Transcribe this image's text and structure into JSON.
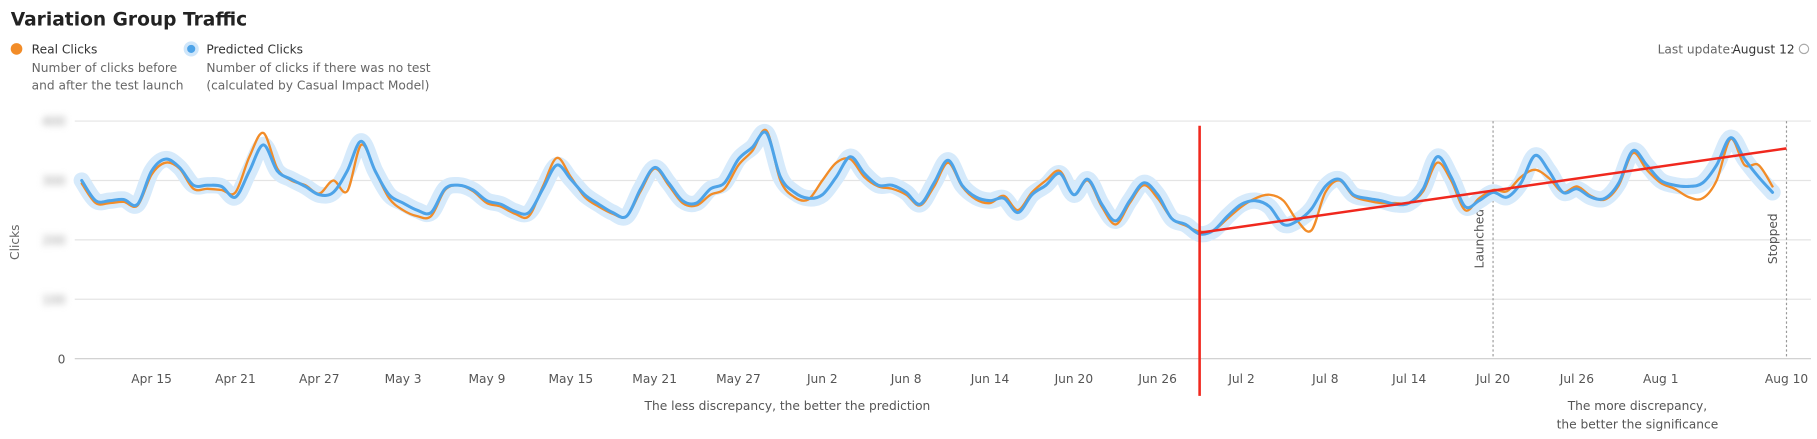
{
  "header": {
    "title": "Variation Group Traffic",
    "last_update_label": "Last update:",
    "last_update": "August 12"
  },
  "chart_data": {
    "type": "line",
    "y_label": "Clicks",
    "categories": [
      "Apr 10",
      "Apr 11",
      "Apr 12",
      "Apr 13",
      "Apr 14",
      "Apr 15",
      "Apr 16",
      "Apr 17",
      "Apr 18",
      "Apr 19",
      "Apr 20",
      "Apr 21",
      "Apr 22",
      "Apr 23",
      "Apr 24",
      "Apr 25",
      "Apr 26",
      "Apr 27",
      "Apr 28",
      "Apr 29",
      "Apr 30",
      "May 1",
      "May 2",
      "May 3",
      "May 4",
      "May 5",
      "May 6",
      "May 7",
      "May 8",
      "May 9",
      "May 10",
      "May 11",
      "May 12",
      "May 13",
      "May 14",
      "May 15",
      "May 16",
      "May 17",
      "May 18",
      "May 19",
      "May 20",
      "May 21",
      "May 22",
      "May 23",
      "May 24",
      "May 25",
      "May 26",
      "May 27",
      "May 28",
      "May 29",
      "May 30",
      "May 31",
      "Jun 1",
      "Jun 2",
      "Jun 3",
      "Jun 4",
      "Jun 5",
      "Jun 6",
      "Jun 7",
      "Jun 8",
      "Jun 9",
      "Jun 10",
      "Jun 11",
      "Jun 12",
      "Jun 13",
      "Jun 14",
      "Jun 15",
      "Jun 16",
      "Jun 17",
      "Jun 18",
      "Jun 19",
      "Jun 20",
      "Jun 21",
      "Jun 22",
      "Jun 23",
      "Jun 24",
      "Jun 25",
      "Jun 26",
      "Jun 27",
      "Jun 28",
      "Jun 29",
      "Jun 30",
      "Jul 1",
      "Jul 2",
      "Jul 3",
      "Jul 4",
      "Jul 5",
      "Jul 6",
      "Jul 7",
      "Jul 8",
      "Jul 9",
      "Jul 10",
      "Jul 11",
      "Jul 12",
      "Jul 13",
      "Jul 14",
      "Jul 15",
      "Jul 16",
      "Jul 17",
      "Jul 18",
      "Jul 19",
      "Jul 20",
      "Jul 21",
      "Jul 22",
      "Jul 23",
      "Jul 24",
      "Jul 25",
      "Jul 26",
      "Jul 27",
      "Jul 28",
      "Jul 29",
      "Jul 30",
      "Jul 31",
      "Aug 1",
      "Aug 2",
      "Aug 3",
      "Aug 4",
      "Aug 5",
      "Aug 6",
      "Aug 7",
      "Aug 8",
      "Aug 9",
      "Aug 10"
    ],
    "xticks": [
      "Apr 15",
      "Apr 21",
      "Apr 27",
      "May 3",
      "May 9",
      "May 15",
      "May 21",
      "May 27",
      "Jun 2",
      "Jun 8",
      "Jun 14",
      "Jun 20",
      "Jun 26",
      "Jul 2",
      "Jul 8",
      "Jul 14",
      "Jul 20",
      "Jul 26",
      "Aug 1",
      "Aug 10"
    ],
    "ylim": [
      0,
      400
    ],
    "yticks": [
      0,
      100,
      200,
      300,
      400
    ],
    "grid": true,
    "series": [
      {
        "name": "Real Clicks",
        "description": [
          "Number of clicks before",
          "and after the test launch"
        ],
        "color": "#f28c28",
        "values": [
          295,
          262,
          262,
          264,
          258,
          310,
          330,
          320,
          286,
          286,
          284,
          280,
          340,
          380,
          320,
          300,
          292,
          278,
          300,
          282,
          360,
          316,
          270,
          250,
          240,
          240,
          284,
          292,
          282,
          262,
          256,
          244,
          240,
          290,
          338,
          306,
          272,
          256,
          244,
          240,
          282,
          320,
          292,
          262,
          258,
          276,
          286,
          326,
          350,
          384,
          300,
          272,
          268,
          300,
          330,
          336,
          306,
          290,
          286,
          276,
          258,
          290,
          330,
          290,
          268,
          262,
          274,
          250,
          280,
          300,
          316,
          276,
          300,
          256,
          226,
          262,
          292,
          270,
          236,
          224,
          214,
          216,
          236,
          256,
          270,
          276,
          266,
          232,
          216,
          280,
          300,
          274,
          266,
          262,
          262,
          262,
          282,
          330,
          300,
          250,
          270,
          284,
          282,
          306,
          318,
          304,
          280,
          290,
          274,
          268,
          292,
          346,
          318,
          296,
          286,
          272,
          270,
          300,
          370,
          326,
          326,
          290,
          null
        ]
      },
      {
        "name": "Predicted Clicks",
        "description": [
          "Number of clicks if there was no test",
          "(calculated by Casual Impact Model)"
        ],
        "color": "#4da3e8",
        "values": [
          300,
          266,
          266,
          268,
          260,
          316,
          336,
          322,
          292,
          292,
          290,
          272,
          316,
          360,
          316,
          302,
          290,
          276,
          280,
          316,
          366,
          316,
          276,
          262,
          250,
          246,
          286,
          292,
          284,
          266,
          260,
          248,
          246,
          286,
          326,
          302,
          276,
          260,
          246,
          240,
          286,
          322,
          296,
          266,
          262,
          286,
          296,
          336,
          356,
          380,
          306,
          280,
          270,
          276,
          306,
          340,
          312,
          292,
          292,
          280,
          260,
          296,
          334,
          292,
          272,
          266,
          270,
          246,
          276,
          292,
          312,
          276,
          302,
          260,
          232,
          266,
          296,
          276,
          236,
          226,
          210,
          216,
          240,
          260,
          266,
          256,
          226,
          232,
          252,
          290,
          302,
          276,
          270,
          266,
          260,
          262,
          286,
          340,
          306,
          256,
          266,
          280,
          272,
          296,
          342,
          316,
          280,
          286,
          272,
          270,
          296,
          350,
          326,
          300,
          292,
          290,
          296,
          326,
          372,
          336,
          306,
          280,
          null
        ]
      }
    ],
    "launch_line": "Jun 29",
    "trend_line": {
      "from": "Jun 29",
      "to": "Aug 10",
      "values": [
        212,
        354
      ],
      "color": "#f0281e"
    },
    "markers": [
      {
        "at": "Jul 20",
        "label": "Launched"
      },
      {
        "at": "Aug 10",
        "label": "Stopped"
      }
    ],
    "notes": [
      {
        "at": "Jun 2",
        "lines": [
          "The less discrepancy, the better the prediction"
        ]
      },
      {
        "at": "Aug 1",
        "lines": [
          "The more discrepancy,",
          "the better the significance"
        ]
      }
    ]
  }
}
